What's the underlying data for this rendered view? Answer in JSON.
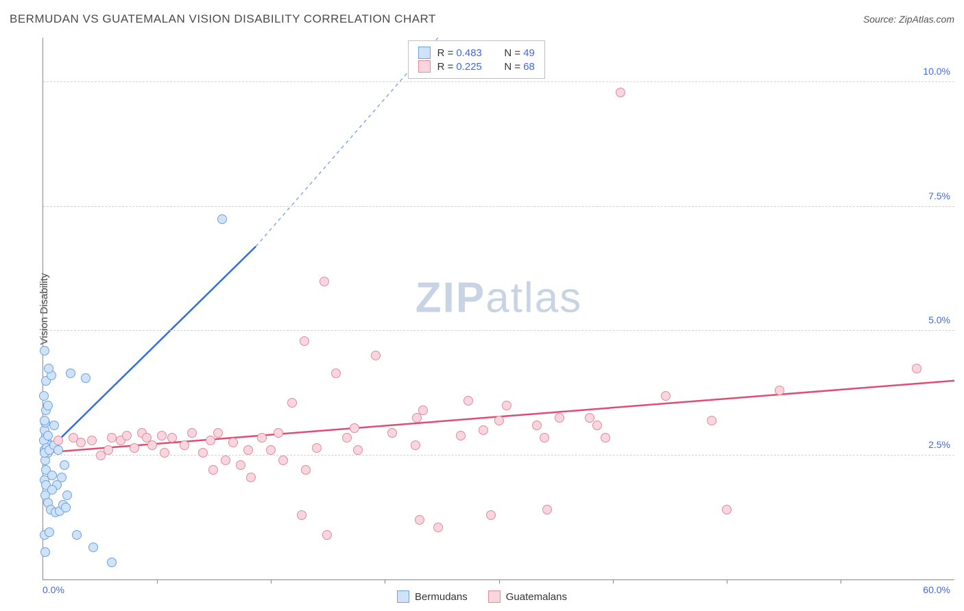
{
  "title": "BERMUDAN VS GUATEMALAN VISION DISABILITY CORRELATION CHART",
  "source": "Source: ZipAtlas.com",
  "ylabel": "Vision Disability",
  "watermark_a": "ZIP",
  "watermark_b": "atlas",
  "chart": {
    "type": "scatter",
    "xlim": [
      0,
      60
    ],
    "ylim": [
      0,
      10.9
    ],
    "y_ticks": [
      2.5,
      5.0,
      7.5,
      10.0
    ],
    "y_tick_labels": [
      "2.5%",
      "5.0%",
      "7.5%",
      "10.0%"
    ],
    "x_label_start": "0.0%",
    "x_label_end": "60.0%",
    "x_minor_ticks": [
      7.5,
      15,
      22.5,
      30,
      37.5,
      45,
      52.5
    ],
    "background": "#ffffff",
    "grid_color": "#d0d0d0",
    "axis_color": "#888888",
    "tick_label_color": "#4169e1",
    "marker_radius": 7,
    "marker_stroke_width": 1.3,
    "series": [
      {
        "name": "Bermudans",
        "fill": "#cfe2f8",
        "stroke": "#6aa3e0",
        "line_color": "#2f6de0",
        "R": "0.483",
        "N": "49",
        "trend": {
          "x1": 0,
          "y1": 2.5,
          "x2": 14,
          "y2": 6.7,
          "dash_to_x": 26,
          "dash_to_y": 10.9
        },
        "points": [
          [
            0.1,
            2.6
          ],
          [
            0.2,
            2.9
          ],
          [
            0.15,
            2.4
          ],
          [
            0.25,
            2.75
          ],
          [
            0.1,
            3.0
          ],
          [
            0.3,
            2.55
          ],
          [
            0.2,
            2.2
          ],
          [
            0.1,
            2.0
          ],
          [
            0.35,
            2.7
          ],
          [
            0.05,
            2.8
          ],
          [
            0.15,
            3.15
          ],
          [
            0.22,
            2.65
          ],
          [
            0.1,
            2.55
          ],
          [
            0.3,
            2.9
          ],
          [
            0.4,
            2.6
          ],
          [
            0.2,
            1.9
          ],
          [
            0.12,
            1.7
          ],
          [
            0.3,
            1.55
          ],
          [
            0.5,
            1.4
          ],
          [
            0.8,
            1.35
          ],
          [
            1.1,
            1.38
          ],
          [
            1.3,
            1.5
          ],
          [
            1.5,
            1.45
          ],
          [
            1.6,
            1.7
          ],
          [
            0.9,
            1.9
          ],
          [
            0.6,
            2.1
          ],
          [
            1.2,
            2.05
          ],
          [
            1.4,
            2.3
          ],
          [
            0.1,
            0.9
          ],
          [
            0.4,
            0.95
          ],
          [
            2.2,
            0.9
          ],
          [
            3.3,
            0.65
          ],
          [
            4.5,
            0.35
          ],
          [
            0.15,
            0.55
          ],
          [
            0.2,
            4.0
          ],
          [
            0.55,
            4.1
          ],
          [
            0.35,
            4.25
          ],
          [
            0.1,
            4.6
          ],
          [
            1.8,
            4.15
          ],
          [
            2.8,
            4.05
          ],
          [
            11.8,
            7.25
          ],
          [
            0.18,
            3.4
          ],
          [
            0.1,
            3.2
          ],
          [
            0.7,
            2.7
          ],
          [
            0.3,
            3.5
          ],
          [
            0.05,
            3.7
          ],
          [
            0.7,
            3.1
          ],
          [
            1.0,
            2.6
          ],
          [
            0.6,
            1.8
          ]
        ]
      },
      {
        "name": "Guatemalans",
        "fill": "#f9d6de",
        "stroke": "#e28a9e",
        "line_color": "#e24b72",
        "R": "0.225",
        "N": "68",
        "trend": {
          "x1": 0,
          "y1": 2.55,
          "x2": 60,
          "y2": 4.0
        },
        "points": [
          [
            1.0,
            2.8
          ],
          [
            2.0,
            2.85
          ],
          [
            2.5,
            2.75
          ],
          [
            3.2,
            2.8
          ],
          [
            3.8,
            2.5
          ],
          [
            4.5,
            2.85
          ],
          [
            5.1,
            2.8
          ],
          [
            5.5,
            2.9
          ],
          [
            6.0,
            2.65
          ],
          [
            6.5,
            2.95
          ],
          [
            7.2,
            2.7
          ],
          [
            7.8,
            2.9
          ],
          [
            8.0,
            2.55
          ],
          [
            8.5,
            2.85
          ],
          [
            9.3,
            2.7
          ],
          [
            10.5,
            2.55
          ],
          [
            11.0,
            2.8
          ],
          [
            11.2,
            2.2
          ],
          [
            11.5,
            2.95
          ],
          [
            12.0,
            2.4
          ],
          [
            12.5,
            2.75
          ],
          [
            13.5,
            2.6
          ],
          [
            13.7,
            2.05
          ],
          [
            14.4,
            2.85
          ],
          [
            15.0,
            2.6
          ],
          [
            15.5,
            2.95
          ],
          [
            16.4,
            3.55
          ],
          [
            17.0,
            1.3
          ],
          [
            17.2,
            4.8
          ],
          [
            17.3,
            2.2
          ],
          [
            18.0,
            2.65
          ],
          [
            18.5,
            6.0
          ],
          [
            18.7,
            0.9
          ],
          [
            19.3,
            4.15
          ],
          [
            20.0,
            2.85
          ],
          [
            20.5,
            3.05
          ],
          [
            20.7,
            2.6
          ],
          [
            21.9,
            4.5
          ],
          [
            23.0,
            2.95
          ],
          [
            24.5,
            2.7
          ],
          [
            24.6,
            3.25
          ],
          [
            25.0,
            3.4
          ],
          [
            24.8,
            1.2
          ],
          [
            26.0,
            1.05
          ],
          [
            27.5,
            2.9
          ],
          [
            28.0,
            3.6
          ],
          [
            29.0,
            3.0
          ],
          [
            30.0,
            3.2
          ],
          [
            29.5,
            1.3
          ],
          [
            30.5,
            3.5
          ],
          [
            32.5,
            3.1
          ],
          [
            33.0,
            2.85
          ],
          [
            33.2,
            1.4
          ],
          [
            34.0,
            3.25
          ],
          [
            36.0,
            3.25
          ],
          [
            36.5,
            3.1
          ],
          [
            37.0,
            2.85
          ],
          [
            38.0,
            9.8
          ],
          [
            41.0,
            3.7
          ],
          [
            44.0,
            3.2
          ],
          [
            45.0,
            1.4
          ],
          [
            48.5,
            3.8
          ],
          [
            57.5,
            4.25
          ],
          [
            4.3,
            2.6
          ],
          [
            6.8,
            2.85
          ],
          [
            9.8,
            2.95
          ],
          [
            13.0,
            2.3
          ],
          [
            15.8,
            2.4
          ]
        ]
      }
    ],
    "legend_font_size": 15
  },
  "footer_legend": {
    "items": [
      {
        "label": "Bermudans",
        "fill": "#cfe2f8",
        "stroke": "#6aa3e0"
      },
      {
        "label": "Guatemalans",
        "fill": "#f9d6de",
        "stroke": "#e28a9e"
      }
    ]
  }
}
